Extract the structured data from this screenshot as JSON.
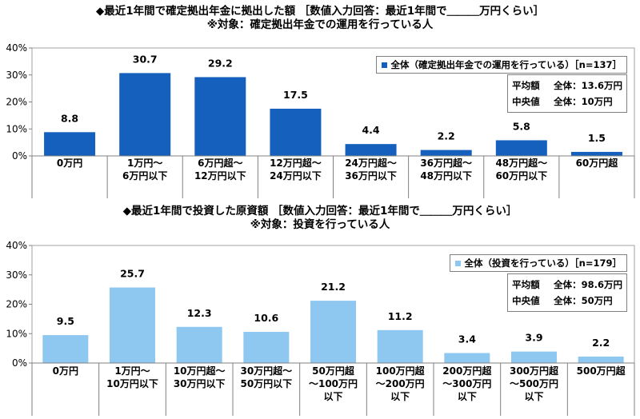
{
  "chart_data": [
    {
      "type": "bar",
      "title": "◆最近1年間で確定拠出年金に拠出した額 ［数値入力回答：最近1年間で＿＿＿万円くらい］",
      "subtitle": "※対象：確定拠出年金での運用を行っている人",
      "categories": [
        [
          "0万円"
        ],
        [
          "1万円～",
          "6万円以下"
        ],
        [
          "6万円超～",
          "12万円以下"
        ],
        [
          "12万円超～",
          "24万円以下"
        ],
        [
          "24万円超～",
          "36万円以下"
        ],
        [
          "36万円超～",
          "48万円以下"
        ],
        [
          "48万円超～",
          "60万円以下"
        ],
        [
          "60万円超"
        ]
      ],
      "series": [
        {
          "name": "全体（確定拠出年金での運用を行っている）［n=137］",
          "values": [
            8.8,
            30.7,
            29.2,
            17.5,
            4.4,
            2.2,
            5.8,
            1.5
          ],
          "labels": [
            "8.8",
            "30.7",
            "29.2",
            "17.5",
            "4.4",
            "2.2",
            "5.8",
            "1.5"
          ],
          "color": "#1560bd"
        }
      ],
      "ylim": [
        0,
        40
      ],
      "yticks": [
        "0%",
        "10%",
        "20%",
        "30%",
        "40%"
      ],
      "stats": [
        {
          "label": "平均額",
          "value": "全体：13.6万円"
        },
        {
          "label": "中央値",
          "value": "全体：10万円"
        }
      ],
      "legend_position": "top-right",
      "grid": false
    },
    {
      "type": "bar",
      "title": "◆最近1年間で投資した原資額 ［数値入力回答：最近1年間で＿＿＿万円くらい］",
      "subtitle": "※対象：投資を行っている人",
      "categories": [
        [
          "0万円"
        ],
        [
          "1万円～",
          "10万円以下"
        ],
        [
          "10万円超～",
          "30万円以下"
        ],
        [
          "30万円超～",
          "50万円以下"
        ],
        [
          "50万円超",
          "～100万円",
          "以下"
        ],
        [
          "100万円超",
          "～200万円",
          "以下"
        ],
        [
          "200万円超",
          "～300万円",
          "以下"
        ],
        [
          "300万円超",
          "～500万円",
          "以下"
        ],
        [
          "500万円超"
        ]
      ],
      "series": [
        {
          "name": "全体（投資を行っている）［n=179］",
          "values": [
            9.5,
            25.7,
            12.3,
            10.6,
            21.2,
            11.2,
            3.4,
            3.9,
            2.2
          ],
          "labels": [
            "9.5",
            "25.7",
            "12.3",
            "10.6",
            "21.2",
            "11.2",
            "3.4",
            "3.9",
            "2.2"
          ],
          "color": "#8ec8f0"
        }
      ],
      "ylim": [
        0,
        40
      ],
      "yticks": [
        "0%",
        "10%",
        "20%",
        "30%",
        "40%"
      ],
      "stats": [
        {
          "label": "平均額",
          "value": "全体：98.6万円"
        },
        {
          "label": "中央値",
          "value": "全体：50万円"
        }
      ],
      "legend_position": "top-right",
      "grid": false
    }
  ]
}
